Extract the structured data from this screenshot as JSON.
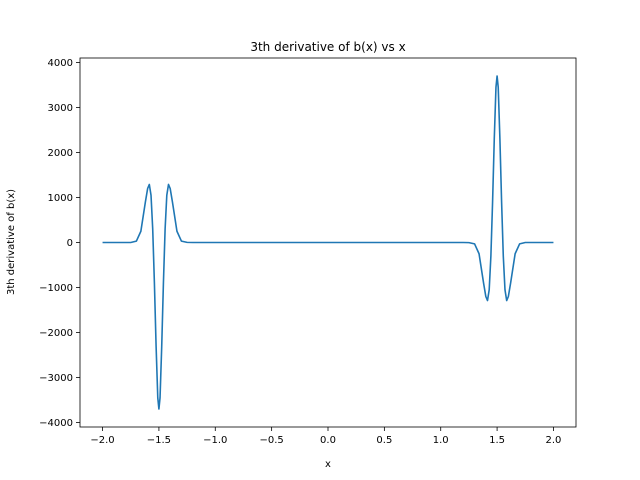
{
  "chart_data": {
    "type": "line",
    "title": "3th derivative of b(x) vs x",
    "xlabel": "x",
    "ylabel": "3th derivative of b(x)",
    "xlim": [
      -2.2,
      2.2
    ],
    "ylim": [
      -4100,
      4100
    ],
    "x_ticks": [
      -2.0,
      -1.5,
      -1.0,
      -0.5,
      0.0,
      0.5,
      1.0,
      1.5,
      2.0
    ],
    "x_tick_labels": [
      "−2.0",
      "−1.5",
      "−1.0",
      "−0.5",
      "0.0",
      "0.5",
      "1.0",
      "1.5",
      "2.0"
    ],
    "y_ticks": [
      -4000,
      -3000,
      -2000,
      -1000,
      0,
      1000,
      2000,
      3000,
      4000
    ],
    "y_tick_labels": [
      "−4000",
      "−3000",
      "−2000",
      "−1000",
      "0",
      "1000",
      "2000",
      "3000",
      "4000"
    ],
    "grid": false,
    "series": [
      {
        "color": "#1f77b4",
        "x": [
          -2.0,
          -1.75,
          -1.7,
          -1.66,
          -1.62,
          -1.6,
          -1.585,
          -1.57,
          -1.555,
          -1.54,
          -1.525,
          -1.51,
          -1.5,
          -1.49,
          -1.475,
          -1.46,
          -1.445,
          -1.43,
          -1.415,
          -1.4,
          -1.38,
          -1.34,
          -1.3,
          -1.25,
          -1.2,
          1.2,
          1.25,
          1.3,
          1.34,
          1.38,
          1.4,
          1.415,
          1.43,
          1.445,
          1.46,
          1.475,
          1.49,
          1.5,
          1.51,
          1.525,
          1.54,
          1.555,
          1.57,
          1.585,
          1.6,
          1.62,
          1.66,
          1.7,
          1.75,
          2.0
        ],
        "y": [
          0,
          0,
          30,
          250,
          900,
          1200,
          1290,
          1050,
          300,
          -900,
          -2300,
          -3450,
          -3700,
          -3450,
          -2300,
          -900,
          300,
          1050,
          1290,
          1200,
          900,
          250,
          30,
          3,
          0,
          0,
          -3,
          -30,
          -250,
          -900,
          -1200,
          -1290,
          -1050,
          -300,
          900,
          2300,
          3450,
          3700,
          3450,
          2300,
          900,
          -300,
          -1050,
          -1290,
          -1200,
          -900,
          -250,
          -30,
          0,
          0
        ]
      }
    ]
  }
}
